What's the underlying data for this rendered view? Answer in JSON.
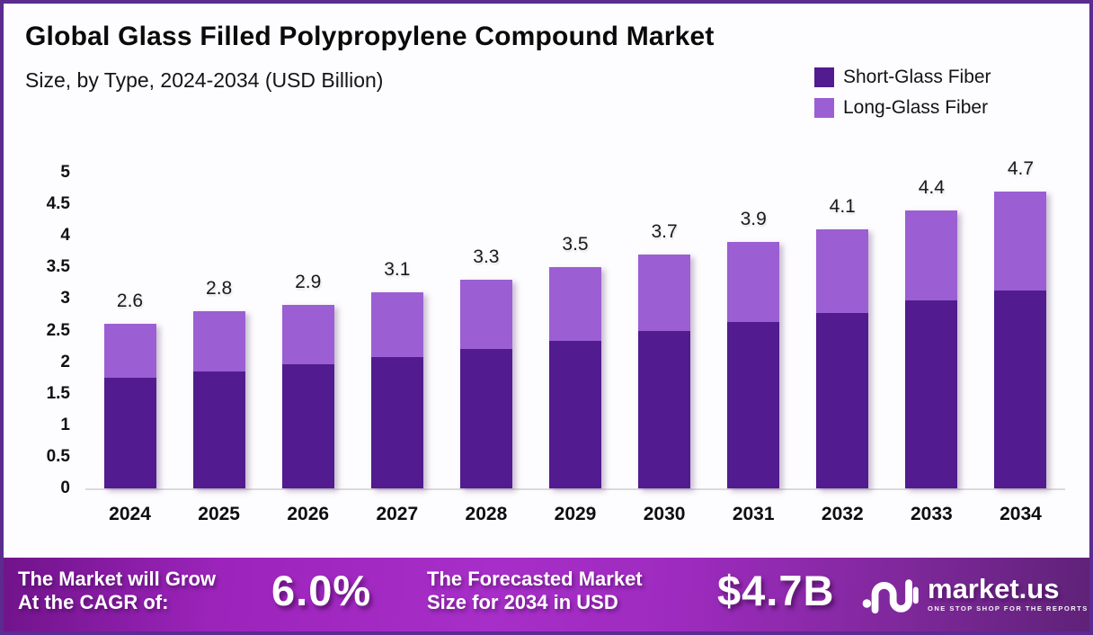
{
  "header": {
    "title": "Global Glass Filled Polypropylene Compound Market",
    "subtitle": "Size, by Type, 2024-2034 (USD Billion)"
  },
  "colors": {
    "short_glass": "#521b8f",
    "long_glass": "#9b5ed3",
    "frame_border": "#5b2b90",
    "banner_mid": "#a72ec8",
    "axis_line": "#dadada"
  },
  "legend": {
    "items": [
      {
        "label": "Short-Glass Fiber",
        "color": "#521b8f"
      },
      {
        "label": "Long-Glass Fiber",
        "color": "#9b5ed3"
      }
    ]
  },
  "chart_data": {
    "type": "bar",
    "stacked": true,
    "title": "Global Glass Filled Polypropylene Compound Market Size, by Type, 2024-2034 (USD Billion)",
    "unit": "USD Billion",
    "categories": [
      "2024",
      "2025",
      "2026",
      "2027",
      "2028",
      "2029",
      "2030",
      "2031",
      "2032",
      "2033",
      "2034"
    ],
    "series": [
      {
        "name": "Short-Glass Fiber",
        "color": "#521b8f",
        "values": [
          1.75,
          1.85,
          1.96,
          2.08,
          2.21,
          2.34,
          2.49,
          2.63,
          2.78,
          2.97,
          3.14
        ]
      },
      {
        "name": "Long-Glass Fiber",
        "color": "#9b5ed3",
        "values": [
          0.85,
          0.95,
          0.94,
          1.02,
          1.09,
          1.16,
          1.21,
          1.27,
          1.32,
          1.43,
          1.56
        ]
      }
    ],
    "totals": [
      2.6,
      2.8,
      2.9,
      3.1,
      3.3,
      3.5,
      3.7,
      3.9,
      4.1,
      4.4,
      4.7
    ],
    "total_labels": [
      "2.6",
      "2.8",
      "2.9",
      "3.1",
      "3.3",
      "3.5",
      "3.7",
      "3.9",
      "4.1",
      "4.4",
      "4.7"
    ],
    "ylim": [
      0,
      5
    ],
    "y_ticks": [
      "0",
      "0.5",
      "1",
      "1.5",
      "2",
      "2.5",
      "3",
      "3.5",
      "4",
      "4.5",
      "5"
    ],
    "grid": false,
    "legend_position": "top-right"
  },
  "footer": {
    "cagr_line1": "The Market will Grow",
    "cagr_line2": "At the CAGR of:",
    "cagr_value": "6.0%",
    "forecast_line1": "The Forecasted Market",
    "forecast_line2": "Size for 2034 in USD",
    "forecast_value": "$4.7B",
    "logo": {
      "brand": "market.us",
      "tagline": "ONE STOP SHOP FOR THE REPORTS"
    }
  }
}
